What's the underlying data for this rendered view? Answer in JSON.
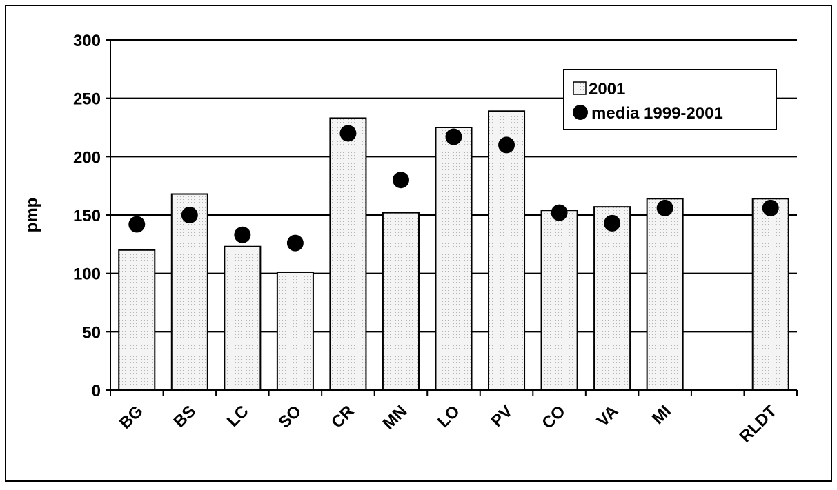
{
  "chart_data": {
    "type": "bar",
    "ylabel": "pmp",
    "ylim": [
      0,
      300
    ],
    "yticks": [
      0,
      50,
      100,
      150,
      200,
      250,
      300
    ],
    "grid": true,
    "legend_position": "top-right",
    "categories": [
      "BG",
      "BS",
      "LC",
      "SO",
      "CR",
      "MN",
      "LO",
      "PV",
      "CO",
      "VA",
      "MI",
      "",
      "RLDT"
    ],
    "series": [
      {
        "name": "2001",
        "kind": "bar",
        "values": [
          120,
          168,
          123,
          101,
          233,
          152,
          225,
          239,
          154,
          157,
          164,
          null,
          164
        ]
      },
      {
        "name": "media 1999-2001",
        "kind": "marker",
        "values": [
          142,
          150,
          133,
          126,
          220,
          180,
          217,
          210,
          152,
          143,
          156,
          null,
          156
        ]
      }
    ]
  },
  "colors": {
    "bar_fill": "#f4f4f4",
    "bar_dots": "#bdbdbd",
    "marker": "#000000",
    "grid": "#000000"
  }
}
